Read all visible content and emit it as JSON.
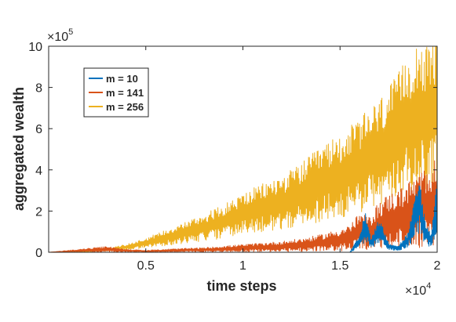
{
  "chart_data": {
    "type": "line",
    "title": "",
    "xlabel": "time steps",
    "ylabel": "aggregated wealth",
    "xlim": [
      0,
      20000
    ],
    "ylim": [
      0,
      1000000
    ],
    "x_ticks": [
      5000,
      10000,
      15000,
      20000
    ],
    "x_tick_labels": [
      "0.5",
      "1",
      "1.5",
      "2"
    ],
    "y_ticks": [
      0,
      200000,
      400000,
      600000,
      800000,
      1000000
    ],
    "y_tick_labels": [
      "0",
      "2",
      "4",
      "6",
      "8",
      "10"
    ],
    "x_multiplier_label": "×10",
    "x_multiplier_exp": "4",
    "y_multiplier_label": "×10",
    "y_multiplier_exp": "5",
    "grid": false,
    "legend": "top-left",
    "series": [
      {
        "name": "m = 10",
        "color": "#0072BD",
        "x": [
          0,
          2000,
          4000,
          6000,
          8000,
          10000,
          12000,
          14000,
          15500,
          16000,
          16300,
          16600,
          17000,
          17500,
          18000,
          18500,
          18800,
          19100,
          19400,
          19700,
          20000
        ],
        "y": [
          0,
          0,
          0,
          0,
          0,
          0,
          0,
          0,
          0,
          50000,
          130000,
          40000,
          110000,
          30000,
          20000,
          60000,
          150000,
          230000,
          90000,
          60000,
          250000
        ]
      },
      {
        "name": "m = 141",
        "color": "#D95319",
        "x": [
          0,
          1000,
          2000,
          3000,
          4000,
          5000,
          6000,
          8000,
          10000,
          12000,
          13000,
          14000,
          15000,
          15500,
          16000,
          16500,
          17000,
          17500,
          18000,
          18500,
          19000,
          19500,
          20000
        ],
        "y": [
          0,
          5000,
          10000,
          15000,
          8000,
          5000,
          8000,
          12000,
          20000,
          28000,
          35000,
          45000,
          60000,
          70000,
          100000,
          90000,
          130000,
          150000,
          160000,
          180000,
          200000,
          220000,
          240000
        ]
      },
      {
        "name": "m = 256",
        "color": "#EDB120",
        "x": [
          0,
          2000,
          3000,
          4000,
          5000,
          6000,
          7000,
          8000,
          9000,
          10000,
          11000,
          12000,
          13000,
          14000,
          15000,
          16000,
          17000,
          18000,
          18500,
          19000,
          19500,
          20000
        ],
        "y": [
          0,
          5000,
          12000,
          25000,
          45000,
          70000,
          95000,
          120000,
          150000,
          185000,
          215000,
          240000,
          280000,
          330000,
          370000,
          420000,
          480000,
          560000,
          620000,
          680000,
          640000,
          700000
        ]
      }
    ]
  }
}
